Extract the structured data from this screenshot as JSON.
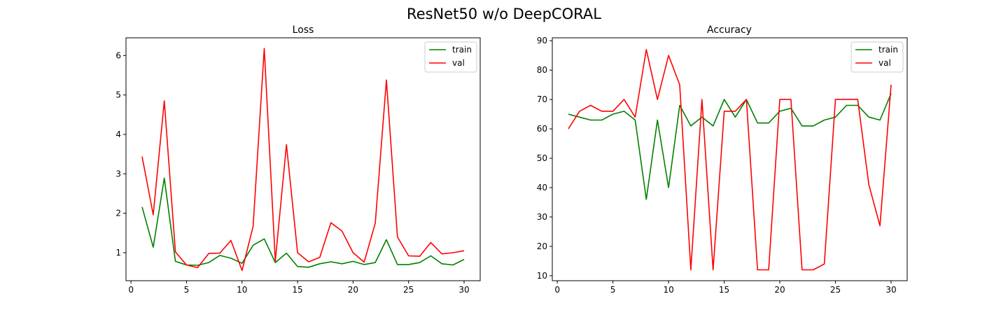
{
  "figure": {
    "title": "ResNet50 w/o DeepCORAL"
  },
  "chart_data": [
    {
      "type": "line",
      "title": "Loss",
      "xlabel": "",
      "ylabel": "",
      "xlim": [
        -0.45,
        31.45
      ],
      "ylim": [
        0.29,
        6.45
      ],
      "xticks": [
        0,
        5,
        10,
        15,
        20,
        25,
        30
      ],
      "yticks": [
        1,
        2,
        3,
        4,
        5,
        6
      ],
      "grid": false,
      "legend": "top-right",
      "x": [
        1,
        2,
        3,
        4,
        5,
        6,
        7,
        8,
        9,
        10,
        11,
        12,
        13,
        14,
        15,
        16,
        17,
        18,
        19,
        20,
        21,
        22,
        23,
        24,
        25,
        26,
        27,
        28,
        29,
        30
      ],
      "series": [
        {
          "name": "train",
          "color": "#008000",
          "values": [
            2.16,
            1.14,
            2.89,
            0.78,
            0.69,
            0.68,
            0.75,
            0.93,
            0.86,
            0.73,
            1.19,
            1.35,
            0.75,
            0.99,
            0.65,
            0.63,
            0.72,
            0.77,
            0.72,
            0.78,
            0.7,
            0.75,
            1.33,
            0.7,
            0.7,
            0.75,
            0.92,
            0.72,
            0.69,
            0.83
          ]
        },
        {
          "name": "val",
          "color": "#ff0000",
          "values": [
            3.44,
            1.96,
            4.85,
            1.02,
            0.69,
            0.62,
            0.98,
            0.99,
            1.31,
            0.55,
            1.67,
            6.18,
            0.79,
            3.74,
            1.0,
            0.77,
            0.88,
            1.76,
            1.55,
            1.0,
            0.76,
            1.75,
            5.38,
            1.4,
            0.92,
            0.91,
            1.26,
            0.97,
            1.0,
            1.05
          ]
        }
      ]
    },
    {
      "type": "line",
      "title": "Accuracy",
      "xlabel": "",
      "ylabel": "",
      "xlim": [
        -0.45,
        31.45
      ],
      "ylim": [
        8.3,
        91.0
      ],
      "xticks": [
        0,
        5,
        10,
        15,
        20,
        25,
        30
      ],
      "yticks": [
        10,
        20,
        30,
        40,
        50,
        60,
        70,
        80,
        90
      ],
      "grid": false,
      "legend": "top-right",
      "x": [
        1,
        2,
        3,
        4,
        5,
        6,
        7,
        8,
        9,
        10,
        11,
        12,
        13,
        14,
        15,
        16,
        17,
        18,
        19,
        20,
        21,
        22,
        23,
        24,
        25,
        26,
        27,
        28,
        29,
        30
      ],
      "series": [
        {
          "name": "train",
          "color": "#008000",
          "values": [
            65,
            64,
            63,
            63,
            65,
            66,
            63,
            36,
            63,
            40,
            68,
            61,
            64,
            61,
            70,
            64,
            70,
            62,
            62,
            66,
            67,
            61,
            61,
            63,
            64,
            68,
            68,
            64,
            63,
            72
          ]
        },
        {
          "name": "val",
          "color": "#ff0000",
          "values": [
            60,
            66,
            68,
            66,
            66,
            70,
            64,
            87,
            70,
            85,
            75,
            12,
            70,
            12,
            66,
            66,
            70,
            12,
            12,
            70,
            70,
            12,
            12,
            14,
            70,
            70,
            70,
            41,
            27,
            75
          ]
        }
      ]
    }
  ]
}
